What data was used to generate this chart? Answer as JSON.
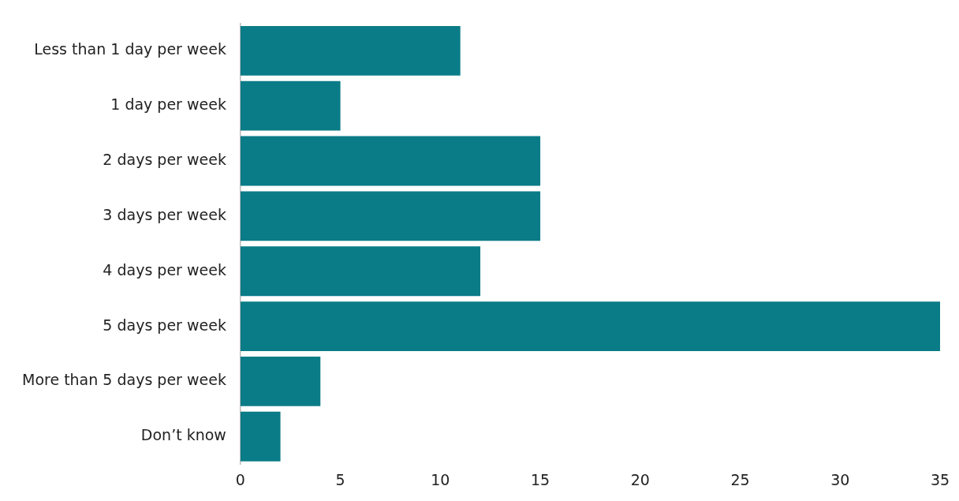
{
  "chart_data": {
    "type": "bar",
    "orientation": "horizontal",
    "categories": [
      "Less than 1 day per week",
      "1 day per week",
      "2 days per week",
      "3 days per week",
      "4 days per week",
      "5 days per week",
      "More than 5 days per week",
      "Don’t know"
    ],
    "values": [
      11,
      5,
      15,
      15,
      12,
      35,
      4,
      2
    ],
    "color": "#0a7c87",
    "xlim": [
      0,
      35
    ],
    "xticks": [
      0,
      5,
      10,
      15,
      20,
      25,
      30,
      35
    ],
    "grid": false,
    "legend": false
  }
}
